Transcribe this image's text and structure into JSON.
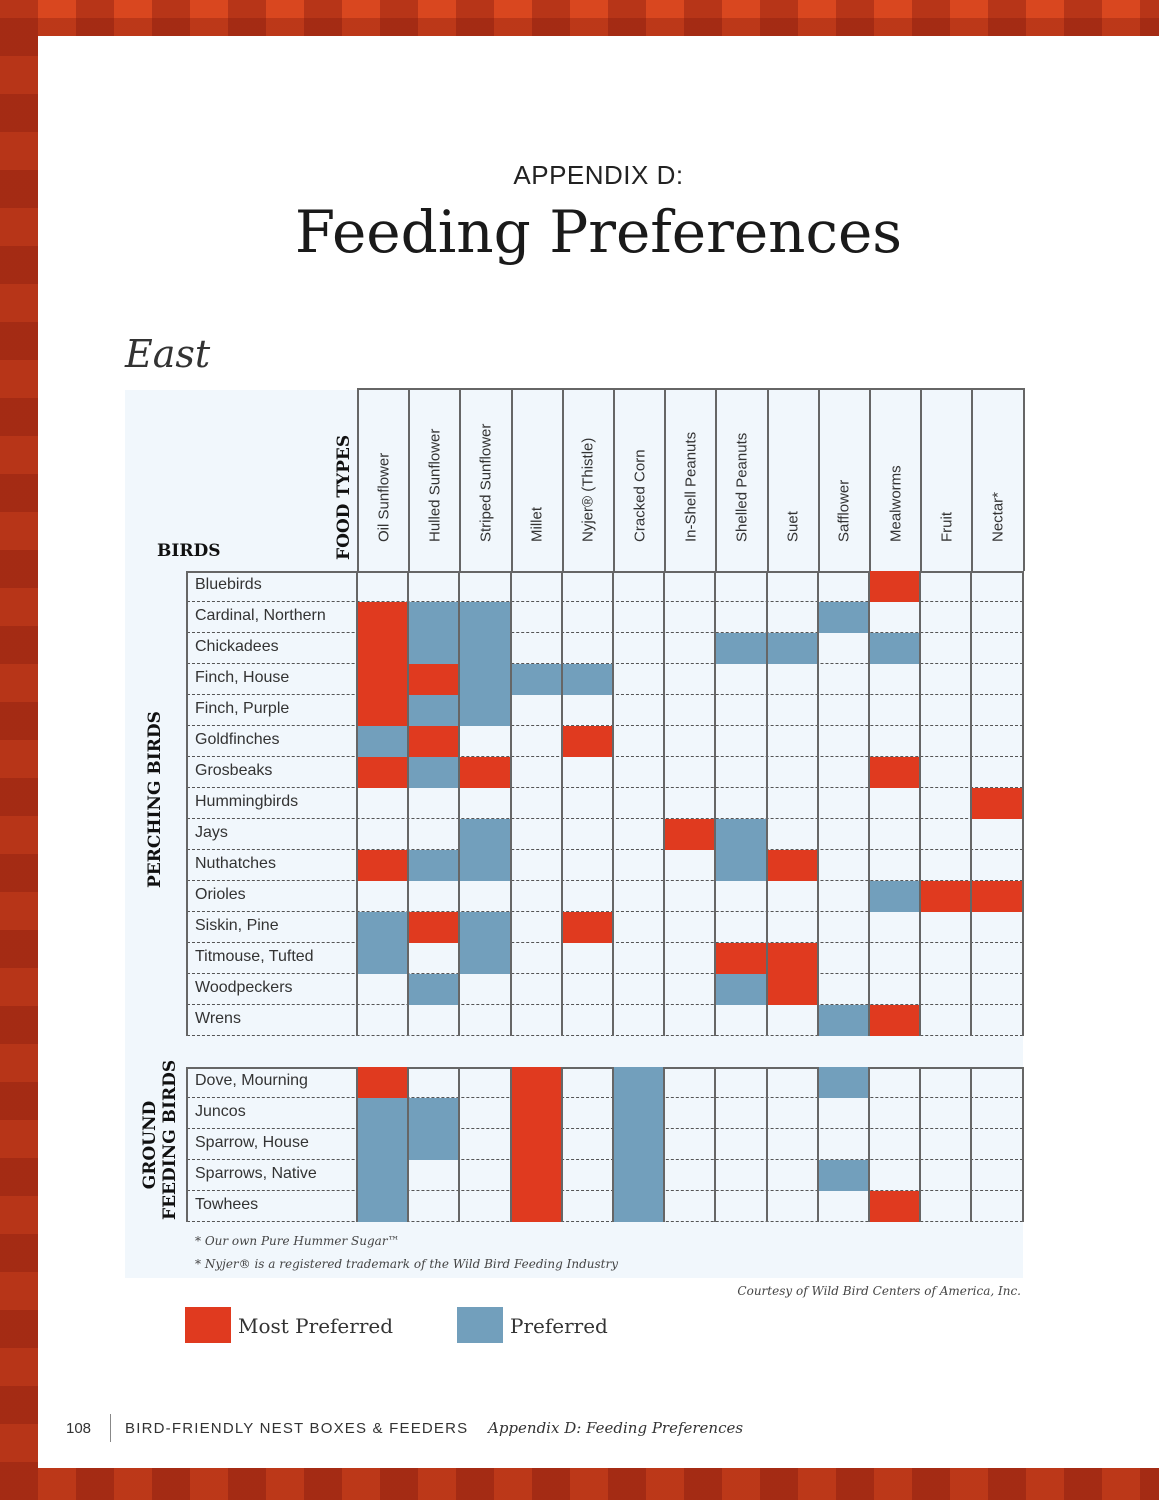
{
  "header": {
    "appendix": "APPENDIX D:",
    "title": "Feeding Preferences",
    "region": "East"
  },
  "table": {
    "birds_label": "BIRDS",
    "food_types_label": "FOOD TYPES",
    "columns": [
      "Oil Sunflower",
      "Hulled Sunflower",
      "Striped Sunflower",
      "Millet",
      "Nyjer® (Thistle)",
      "Cracked Corn",
      "In-Shell Peanuts",
      "Shelled Peanuts",
      "Suet",
      "Safflower",
      "Mealworms",
      "Fruit",
      "Nectar*"
    ],
    "legend_codes": {
      "M": "Most Preferred",
      "P": "Preferred",
      "-": "None"
    },
    "groups": [
      {
        "label": "PERCHING BIRDS",
        "rows": [
          {
            "bird": "Bluebirds",
            "prefs": [
              "-",
              "-",
              "-",
              "-",
              "-",
              "-",
              "-",
              "-",
              "-",
              "-",
              "M",
              "-",
              "-"
            ]
          },
          {
            "bird": "Cardinal, Northern",
            "prefs": [
              "M",
              "P",
              "P",
              "-",
              "-",
              "-",
              "-",
              "-",
              "-",
              "P",
              "-",
              "-",
              "-"
            ]
          },
          {
            "bird": "Chickadees",
            "prefs": [
              "M",
              "P",
              "P",
              "-",
              "-",
              "-",
              "-",
              "P",
              "P",
              "-",
              "P",
              "-",
              "-"
            ]
          },
          {
            "bird": "Finch, House",
            "prefs": [
              "M",
              "M",
              "P",
              "P",
              "P",
              "-",
              "-",
              "-",
              "-",
              "-",
              "-",
              "-",
              "-"
            ]
          },
          {
            "bird": "Finch, Purple",
            "prefs": [
              "M",
              "P",
              "P",
              "-",
              "-",
              "-",
              "-",
              "-",
              "-",
              "-",
              "-",
              "-",
              "-"
            ]
          },
          {
            "bird": "Goldfinches",
            "prefs": [
              "P",
              "M",
              "-",
              "-",
              "M",
              "-",
              "-",
              "-",
              "-",
              "-",
              "-",
              "-",
              "-"
            ]
          },
          {
            "bird": "Grosbeaks",
            "prefs": [
              "M",
              "P",
              "M",
              "-",
              "-",
              "-",
              "-",
              "-",
              "-",
              "-",
              "M",
              "-",
              "-"
            ]
          },
          {
            "bird": "Hummingbirds",
            "prefs": [
              "-",
              "-",
              "-",
              "-",
              "-",
              "-",
              "-",
              "-",
              "-",
              "-",
              "-",
              "-",
              "M"
            ]
          },
          {
            "bird": "Jays",
            "prefs": [
              "-",
              "-",
              "P",
              "-",
              "-",
              "-",
              "M",
              "P",
              "-",
              "-",
              "-",
              "-",
              "-"
            ]
          },
          {
            "bird": "Nuthatches",
            "prefs": [
              "M",
              "P",
              "P",
              "-",
              "-",
              "-",
              "-",
              "P",
              "M",
              "-",
              "-",
              "-",
              "-"
            ]
          },
          {
            "bird": "Orioles",
            "prefs": [
              "-",
              "-",
              "-",
              "-",
              "-",
              "-",
              "-",
              "-",
              "-",
              "-",
              "P",
              "M",
              "M"
            ]
          },
          {
            "bird": "Siskin, Pine",
            "prefs": [
              "P",
              "M",
              "P",
              "-",
              "M",
              "-",
              "-",
              "-",
              "-",
              "-",
              "-",
              "-",
              "-"
            ]
          },
          {
            "bird": "Titmouse, Tufted",
            "prefs": [
              "P",
              "-",
              "P",
              "-",
              "-",
              "-",
              "-",
              "M",
              "M",
              "-",
              "-",
              "-",
              "-"
            ]
          },
          {
            "bird": "Woodpeckers",
            "prefs": [
              "-",
              "P",
              "-",
              "-",
              "-",
              "-",
              "-",
              "P",
              "M",
              "-",
              "-",
              "-",
              "-"
            ]
          },
          {
            "bird": "Wrens",
            "prefs": [
              "-",
              "-",
              "-",
              "-",
              "-",
              "-",
              "-",
              "-",
              "-",
              "P",
              "M",
              "-",
              "-"
            ]
          }
        ]
      },
      {
        "label": "GROUND FEEDING BIRDS",
        "label_lines": [
          "GROUND",
          "FEEDING BIRDS"
        ],
        "rows": [
          {
            "bird": "Dove, Mourning",
            "prefs": [
              "M",
              "-",
              "-",
              "M",
              "-",
              "P",
              "-",
              "-",
              "-",
              "P",
              "-",
              "-",
              "-"
            ]
          },
          {
            "bird": "Juncos",
            "prefs": [
              "P",
              "P",
              "-",
              "M",
              "-",
              "P",
              "-",
              "-",
              "-",
              "-",
              "-",
              "-",
              "-"
            ]
          },
          {
            "bird": "Sparrow, House",
            "prefs": [
              "P",
              "P",
              "-",
              "M",
              "-",
              "P",
              "-",
              "-",
              "-",
              "-",
              "-",
              "-",
              "-"
            ]
          },
          {
            "bird": "Sparrows, Native",
            "prefs": [
              "P",
              "-",
              "-",
              "M",
              "-",
              "P",
              "-",
              "-",
              "-",
              "P",
              "-",
              "-",
              "-"
            ]
          },
          {
            "bird": "Towhees",
            "prefs": [
              "P",
              "-",
              "-",
              "M",
              "-",
              "P",
              "-",
              "-",
              "-",
              "-",
              "M",
              "-",
              "-"
            ]
          }
        ]
      }
    ],
    "footnotes": [
      "* Our own Pure Hummer Sugar™",
      "* Nyjer® is a registered trademark of the Wild Bird Feeding Industry"
    ],
    "courtesy": "Courtesy of Wild Bird Centers of America, Inc."
  },
  "legend": {
    "most_preferred": {
      "label": "Most Preferred",
      "color": "#e03a1f"
    },
    "preferred": {
      "label": "Preferred",
      "color": "#729fbc"
    }
  },
  "footer": {
    "page_number": "108",
    "book_title": "BIRD-FRIENDLY NEST BOXES & FEEDERS",
    "chapter": "Appendix D: Feeding Preferences"
  }
}
